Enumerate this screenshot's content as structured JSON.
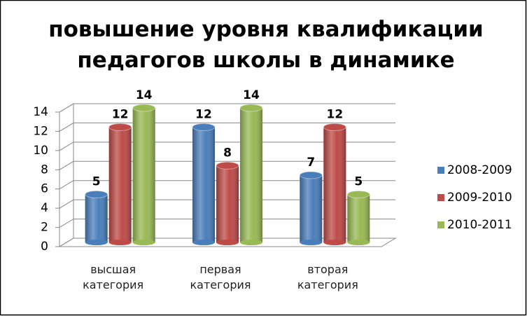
{
  "chart_data": {
    "type": "bar",
    "title": "повышение уровня квалификации педагогов школы в динамике",
    "categories": [
      "высшая категория",
      "первая категория",
      "вторая категория"
    ],
    "series": [
      {
        "name": "2008-2009",
        "color": "#4a7ebb",
        "values": [
          5,
          12,
          7
        ]
      },
      {
        "name": "2009-2010",
        "color": "#be4b48",
        "values": [
          12,
          8,
          12
        ]
      },
      {
        "name": "2010-2011",
        "color": "#98b954",
        "values": [
          14,
          14,
          5
        ]
      }
    ],
    "ylim": [
      0,
      14
    ],
    "yticks": [
      0,
      2,
      4,
      6,
      8,
      10,
      12,
      14
    ],
    "grid": true,
    "legend": "right"
  }
}
